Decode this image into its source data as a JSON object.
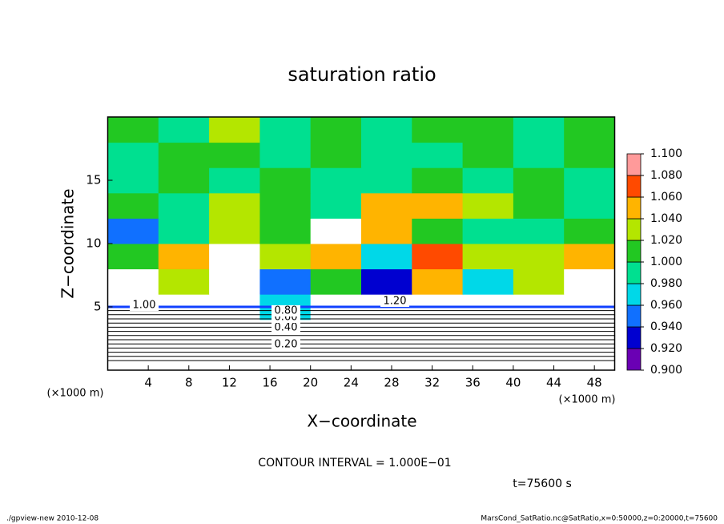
{
  "chart_data": {
    "type": "heatmap",
    "title": "saturation ratio",
    "x_label": "X−coordinate",
    "y_label": "Z−coordinate",
    "x_unit_label": "(×1000 m)",
    "y_unit_label": "(×1000 m)",
    "contour_interval": "CONTOUR INTERVAL = 1.000E−01",
    "time_label": "t=75600 s",
    "footer_left": "./gpview-new  2010-12-08",
    "footer_right": "MarsCond_SatRatio.nc@SatRatio,x=0:50000,z=0:20000,t=75600",
    "contour_labels": [
      "0.20",
      "0.40",
      "0.60",
      "0.80",
      "1.00",
      "1.20"
    ],
    "xlim": [
      0,
      50
    ],
    "ylim": [
      0,
      20
    ],
    "xticks": [
      4,
      8,
      12,
      16,
      20,
      24,
      28,
      32,
      36,
      40,
      44,
      48
    ],
    "yticks": [
      5,
      10,
      15
    ],
    "x_edges": [
      0,
      5,
      10,
      15,
      20,
      25,
      30,
      35,
      40,
      45,
      50
    ],
    "z_edges": [
      0,
      2,
      4,
      6,
      8,
      10,
      12,
      14,
      16,
      18,
      20
    ],
    "z": [
      [
        0.15,
        0.15,
        0.15,
        0.15,
        0.15,
        0.15,
        0.15,
        0.15,
        0.15,
        0.15
      ],
      [
        0.45,
        0.45,
        0.45,
        0.45,
        0.45,
        0.45,
        0.45,
        0.45,
        0.45,
        0.45
      ],
      [
        1.2,
        1.2,
        1.2,
        0.97,
        1.2,
        1.2,
        1.2,
        1.2,
        1.2,
        1.2
      ],
      [
        1.2,
        1.03,
        1.2,
        0.95,
        1.01,
        0.93,
        1.05,
        0.97,
        1.03,
        1.2
      ],
      [
        1.01,
        1.05,
        1.2,
        1.04,
        1.06,
        0.97,
        1.07,
        1.04,
        1.03,
        1.05
      ],
      [
        0.95,
        1.0,
        1.03,
        1.01,
        1.2,
        1.05,
        1.01,
        1.0,
        1.0,
        1.02
      ],
      [
        1.01,
        1.0,
        1.03,
        1.01,
        1.0,
        1.06,
        1.05,
        1.04,
        1.01,
        1.0
      ],
      [
        1.0,
        1.02,
        1.0,
        1.01,
        1.0,
        1.0,
        1.01,
        1.0,
        1.01,
        1.0
      ],
      [
        1.0,
        1.01,
        1.02,
        1.0,
        1.01,
        1.0,
        1.0,
        1.01,
        1.0,
        1.01
      ],
      [
        1.01,
        1.0,
        1.03,
        1.0,
        1.01,
        1.0,
        1.02,
        1.01,
        1.0,
        1.01
      ]
    ],
    "colorbar": {
      "lim": [
        0.9,
        1.1
      ],
      "ticks": [
        {
          "value": 0.9,
          "label": "0.900"
        },
        {
          "value": 0.92,
          "label": "0.920"
        },
        {
          "value": 0.94,
          "label": "0.940"
        },
        {
          "value": 0.96,
          "label": "0.960"
        },
        {
          "value": 0.98,
          "label": "0.980"
        },
        {
          "value": 1.0,
          "label": "1.000"
        },
        {
          "value": 1.02,
          "label": "1.020"
        },
        {
          "value": 1.04,
          "label": "1.040"
        },
        {
          "value": 1.06,
          "label": "1.060"
        },
        {
          "value": 1.08,
          "label": "1.080"
        },
        {
          "value": 1.1,
          "label": "1.100"
        }
      ],
      "colors": [
        "#6a00b4",
        "#0000d0",
        "#1070ff",
        "#00d8e8",
        "#00e090",
        "#22c822",
        "#b4e600",
        "#ffb400",
        "#ff4a00",
        "#ff9a9a"
      ]
    }
  }
}
